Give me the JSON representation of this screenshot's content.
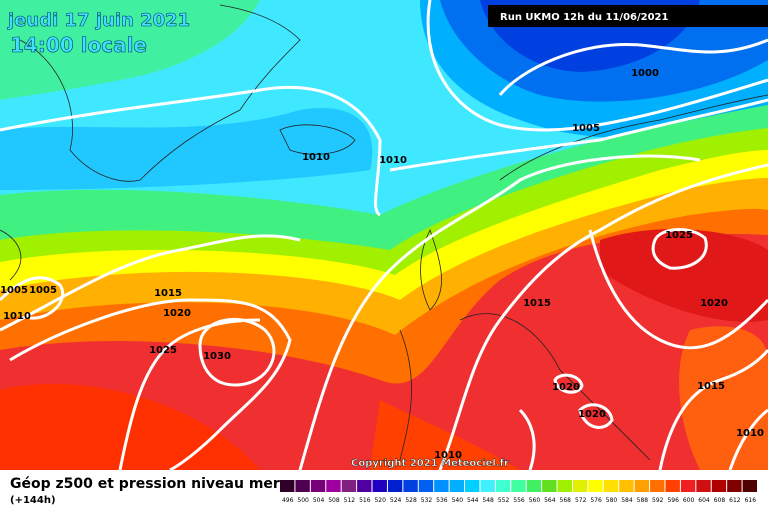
{
  "header": {
    "date": "jeudi 17 juin 2021",
    "time": "14:00 locale",
    "run": "Run UKMO 12h du 11/06/2021"
  },
  "isobar_labels": [
    "1000",
    "1005",
    "1010",
    "1010",
    "1005",
    "1005",
    "1010",
    "1015",
    "1020",
    "1025",
    "1030",
    "1015",
    "1025",
    "1020",
    "1020",
    "1020",
    "1015",
    "1010",
    "1010"
  ],
  "copyright": "Copyright 2021 Meteociel.fr",
  "legend": {
    "title": "Géop z500 et pression niveau mer",
    "lead": "(+144h)",
    "levels": [
      "496",
      "500",
      "504",
      "508",
      "512",
      "516",
      "520",
      "524",
      "528",
      "532",
      "536",
      "540",
      "544",
      "548",
      "552",
      "556",
      "560",
      "564",
      "568",
      "572",
      "576",
      "580",
      "584",
      "588",
      "592",
      "596",
      "600",
      "604",
      "608",
      "612",
      "616"
    ],
    "colors": [
      "#300028",
      "#500050",
      "#780078",
      "#a000a0",
      "#802080",
      "#5000a0",
      "#2000c0",
      "#0020d0",
      "#0040e0",
      "#0060f0",
      "#0090ff",
      "#00b0ff",
      "#00d0ff",
      "#40f0ff",
      "#40ffd0",
      "#40ffa0",
      "#40f060",
      "#60e020",
      "#a0f000",
      "#e0f000",
      "#ffff00",
      "#ffe000",
      "#ffc000",
      "#ffa000",
      "#ff7000",
      "#ff4000",
      "#f02020",
      "#d01010",
      "#b00000",
      "#800000",
      "#500000"
    ]
  }
}
